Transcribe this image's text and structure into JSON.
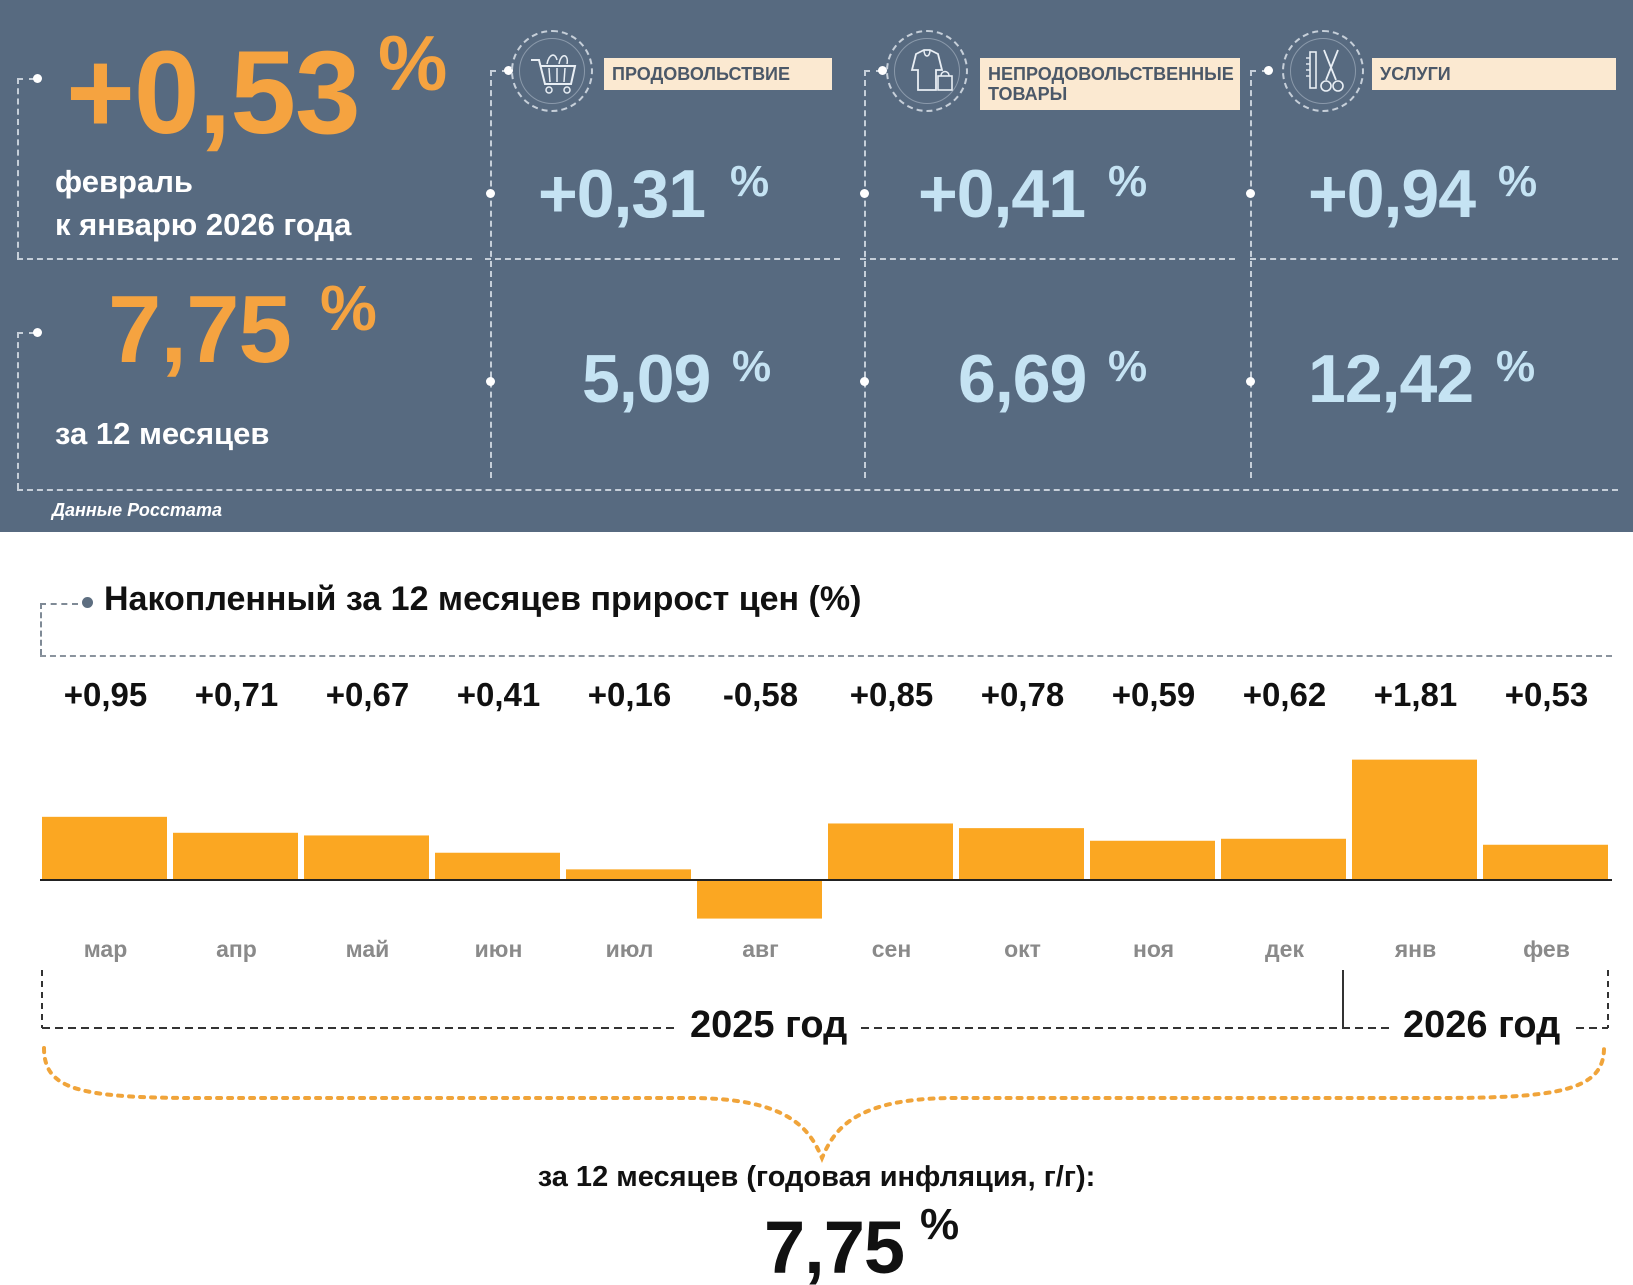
{
  "headline": {
    "monthly_change": "+0,53",
    "percent_sign": "%",
    "period_line1": "февраль",
    "period_line2": "к январю 2026 года",
    "annual_change": "7,75",
    "annual_label": "за 12 месяцев",
    "source": "Данные Росстата"
  },
  "categories": [
    {
      "name": "ПРОДОВОЛЬСТВИЕ",
      "icon": "shopping-cart-icon",
      "monthly": "+0,31",
      "annual": "5,09"
    },
    {
      "name": "НЕПРОДОВОЛЬСТВЕННЫЕ ТОВАРЫ",
      "icon": "clothes-bag-icon",
      "monthly": "+0,41",
      "annual": "6,69"
    },
    {
      "name": "УСЛУГИ",
      "icon": "scissors-comb-icon",
      "monthly": "+0,94",
      "annual": "12,42"
    }
  ],
  "colors": {
    "panel": "#576a80",
    "accent": "#f5a340",
    "light_value": "#c5e3f3",
    "bar": "#fba722",
    "tag_bg": "#fbe9d1"
  },
  "chart_data": {
    "type": "bar",
    "title": "Накопленный за 12 месяцев прирост цен (%)",
    "categories": [
      "мар",
      "апр",
      "май",
      "июн",
      "июл",
      "авг",
      "сен",
      "окт",
      "ноя",
      "дек",
      "янв",
      "фев"
    ],
    "values": [
      0.95,
      0.71,
      0.67,
      0.41,
      0.16,
      -0.58,
      0.85,
      0.78,
      0.59,
      0.62,
      1.81,
      0.53
    ],
    "value_labels": [
      "+0,95",
      "+0,71",
      "+0,67",
      "+0,41",
      "+0,16",
      "-0,58",
      "+0,85",
      "+0,78",
      "+0,59",
      "+0,62",
      "+1,81",
      "+0,53"
    ],
    "xlabel": "",
    "ylabel": "%",
    "ylim": [
      -0.58,
      1.81
    ],
    "year_labels": [
      "2025 год",
      "2026 год"
    ],
    "annual_caption": "за 12 месяцев (годовая инфляция, г/г):",
    "annual_value": "7,75",
    "annual_percent": "%"
  }
}
